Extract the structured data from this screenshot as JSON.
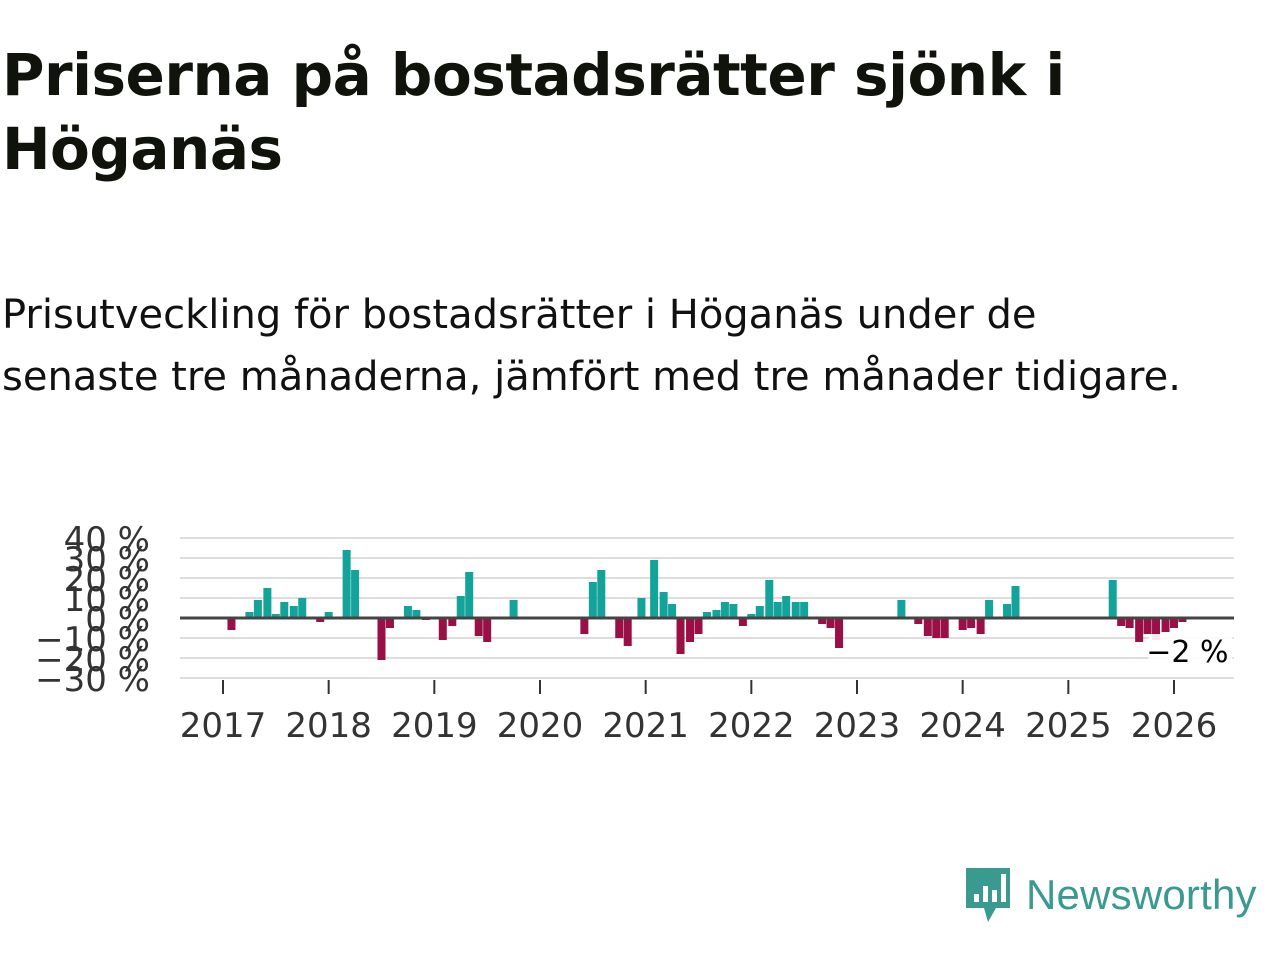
{
  "title": "Priserna på bostadsrätter sjönk i Höganäs",
  "subtitle": "Prisutveckling för bostadsrätter i Höganäs under de senaste tre månaderna, jämfört med tre månader tidigare.",
  "brand": {
    "name": "Newsworthy",
    "color": "#3a9a90"
  },
  "colors": {
    "positive": "#13a39a",
    "negative": "#9a0f45",
    "zero_line": "#444444",
    "grid": "#dddddd"
  },
  "chart_data": {
    "type": "bar",
    "title": "",
    "xlabel": "",
    "ylabel": "",
    "ylim": [
      -30,
      40
    ],
    "yticks": [
      {
        "value": 40,
        "label": "40 %"
      },
      {
        "value": 30,
        "label": "30 %"
      },
      {
        "value": 20,
        "label": "20 %"
      },
      {
        "value": 10,
        "label": "10 %"
      },
      {
        "value": 0,
        "label": "0 %"
      },
      {
        "value": -10,
        "label": "−10 %"
      },
      {
        "value": -20,
        "label": "−20 %"
      },
      {
        "value": -30,
        "label": "−30 %"
      }
    ],
    "xticks": [
      {
        "value": 2017,
        "label": "2017"
      },
      {
        "value": 2018,
        "label": "2018"
      },
      {
        "value": 2019,
        "label": "2019"
      },
      {
        "value": 2020,
        "label": "2020"
      },
      {
        "value": 2021,
        "label": "2021"
      },
      {
        "value": 2022,
        "label": "2022"
      },
      {
        "value": 2023,
        "label": "2023"
      },
      {
        "value": 2024,
        "label": "2024"
      },
      {
        "value": 2025,
        "label": "2025"
      },
      {
        "value": 2026,
        "label": "2026"
      }
    ],
    "series": [
      {
        "name": "Prisutveckling",
        "points": [
          {
            "x": 2017.08,
            "y": -6
          },
          {
            "x": 2017.25,
            "y": 3
          },
          {
            "x": 2017.33,
            "y": 9
          },
          {
            "x": 2017.42,
            "y": 15
          },
          {
            "x": 2017.5,
            "y": 2
          },
          {
            "x": 2017.58,
            "y": 8
          },
          {
            "x": 2017.67,
            "y": 6
          },
          {
            "x": 2017.75,
            "y": 10
          },
          {
            "x": 2017.92,
            "y": -2
          },
          {
            "x": 2018.0,
            "y": 3
          },
          {
            "x": 2018.17,
            "y": 34
          },
          {
            "x": 2018.25,
            "y": 24
          },
          {
            "x": 2018.5,
            "y": -21
          },
          {
            "x": 2018.58,
            "y": -5
          },
          {
            "x": 2018.75,
            "y": 6
          },
          {
            "x": 2018.83,
            "y": 4
          },
          {
            "x": 2018.92,
            "y": -1
          },
          {
            "x": 2019.08,
            "y": -11
          },
          {
            "x": 2019.17,
            "y": -4
          },
          {
            "x": 2019.25,
            "y": 11
          },
          {
            "x": 2019.33,
            "y": 23
          },
          {
            "x": 2019.42,
            "y": -9
          },
          {
            "x": 2019.5,
            "y": -12
          },
          {
            "x": 2019.75,
            "y": 9
          },
          {
            "x": 2020.42,
            "y": -8
          },
          {
            "x": 2020.5,
            "y": 18
          },
          {
            "x": 2020.58,
            "y": 24
          },
          {
            "x": 2020.75,
            "y": -10
          },
          {
            "x": 2020.83,
            "y": -14
          },
          {
            "x": 2020.96,
            "y": 10
          },
          {
            "x": 2021.08,
            "y": 29
          },
          {
            "x": 2021.17,
            "y": 13
          },
          {
            "x": 2021.25,
            "y": 7
          },
          {
            "x": 2021.33,
            "y": -18
          },
          {
            "x": 2021.42,
            "y": -12
          },
          {
            "x": 2021.5,
            "y": -8
          },
          {
            "x": 2021.58,
            "y": 3
          },
          {
            "x": 2021.67,
            "y": 4
          },
          {
            "x": 2021.75,
            "y": 8
          },
          {
            "x": 2021.83,
            "y": 7
          },
          {
            "x": 2021.92,
            "y": -4
          },
          {
            "x": 2022.0,
            "y": 2
          },
          {
            "x": 2022.08,
            "y": 6
          },
          {
            "x": 2022.17,
            "y": 19
          },
          {
            "x": 2022.25,
            "y": 8
          },
          {
            "x": 2022.33,
            "y": 11
          },
          {
            "x": 2022.42,
            "y": 8
          },
          {
            "x": 2022.5,
            "y": 8
          },
          {
            "x": 2022.67,
            "y": -3
          },
          {
            "x": 2022.75,
            "y": -5
          },
          {
            "x": 2022.83,
            "y": -15
          },
          {
            "x": 2023.42,
            "y": 9
          },
          {
            "x": 2023.58,
            "y": -3
          },
          {
            "x": 2023.67,
            "y": -9
          },
          {
            "x": 2023.75,
            "y": -10
          },
          {
            "x": 2023.83,
            "y": -10
          },
          {
            "x": 2024.0,
            "y": -6
          },
          {
            "x": 2024.08,
            "y": -5
          },
          {
            "x": 2024.17,
            "y": -8
          },
          {
            "x": 2024.25,
            "y": 9
          },
          {
            "x": 2024.42,
            "y": 7
          },
          {
            "x": 2024.5,
            "y": 16
          },
          {
            "x": 2025.42,
            "y": 19
          },
          {
            "x": 2025.5,
            "y": -4
          },
          {
            "x": 2025.58,
            "y": -5
          },
          {
            "x": 2025.67,
            "y": -12
          },
          {
            "x": 2025.75,
            "y": -8
          },
          {
            "x": 2025.83,
            "y": -11
          },
          {
            "x": 2025.92,
            "y": -7
          },
          {
            "x": 2026.0,
            "y": -5
          },
          {
            "x": 2026.08,
            "y": -2
          }
        ]
      }
    ],
    "annotations": [
      {
        "x": 2026.08,
        "y": -2,
        "label": "−2 %"
      }
    ]
  }
}
